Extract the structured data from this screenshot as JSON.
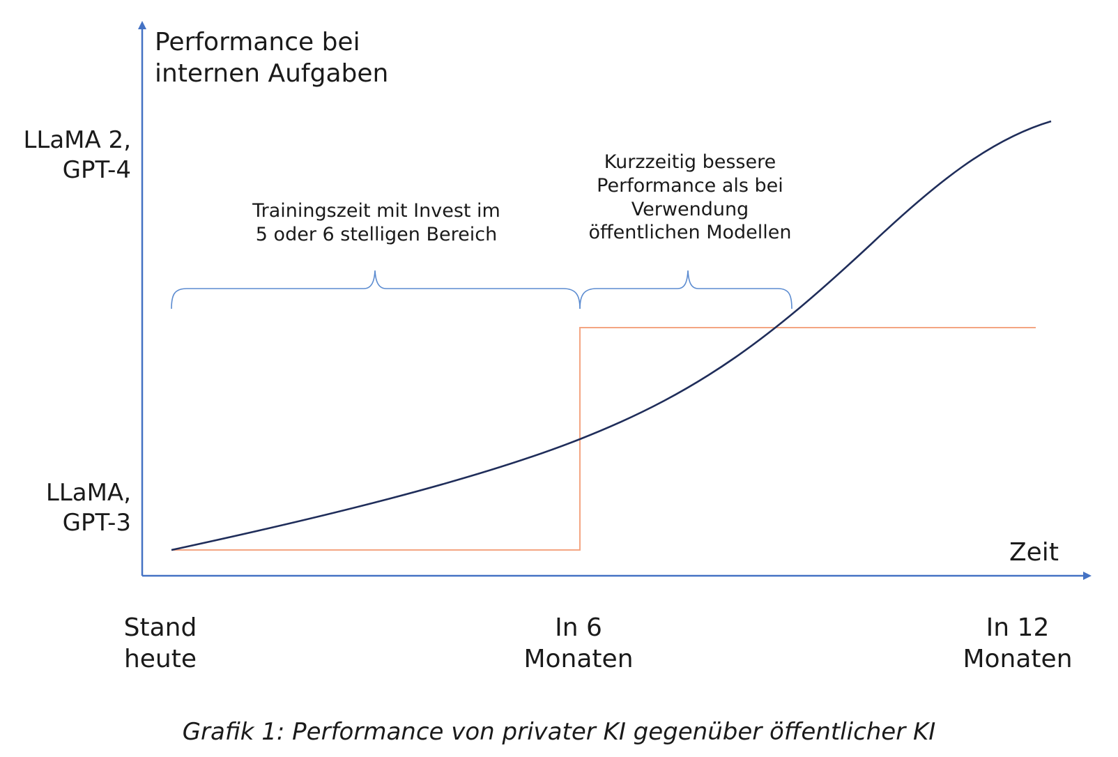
{
  "diagram": {
    "y_axis_label": "Performance bei\ninternen Aufgaben",
    "y_ticks": [
      "LLaMA 2,\nGPT-4",
      "LLaMA,\nGPT-3"
    ],
    "x_axis_label": "Zeit",
    "x_ticks": [
      "Stand\nheute",
      "In 6\nMonaten",
      "In 12\nMonaten"
    ],
    "annotations": {
      "training": "Trainingszeit mit Invest im\n5 oder 6 stelligen Bereich",
      "advantage": "Kurzzeitig bessere\nPerformance als bei\nVerwendung\nöffentlichen Modellen"
    },
    "caption": "Grafik 1: Performance von privater KI gegenüber öffentlicher KI",
    "colors": {
      "axis": "#4472c4",
      "public_curve": "#1f2d5a",
      "private_step": "#f4a582",
      "brace": "#5b8bd0"
    }
  }
}
